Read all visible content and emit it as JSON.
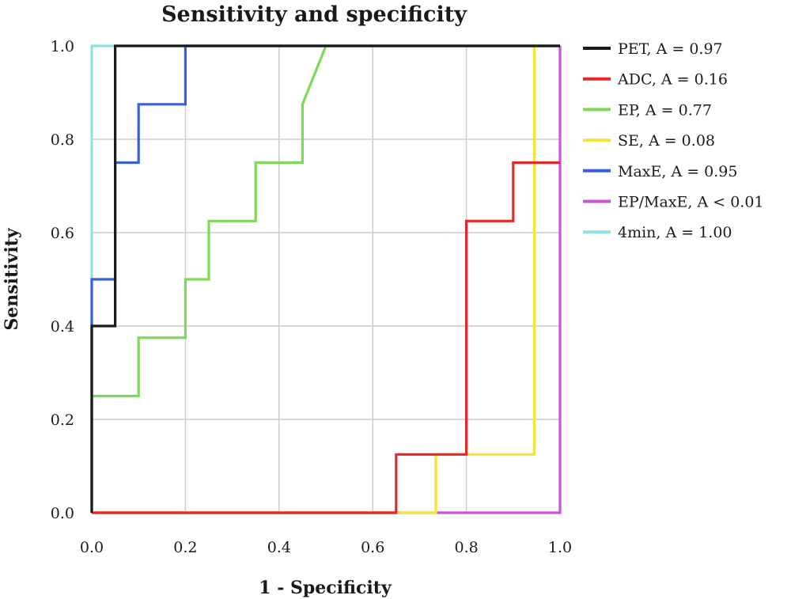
{
  "chart_data": {
    "type": "line",
    "title": "Sensitivity and specificity",
    "xlabel": "1 - Specificity",
    "ylabel": "Sensitivity",
    "xlim": [
      0,
      1
    ],
    "ylim": [
      0,
      1
    ],
    "x_ticks": [
      "0.0",
      "0.2",
      "0.4",
      "0.6",
      "0.8",
      "1.0"
    ],
    "y_ticks": [
      "0.0",
      "0.2",
      "0.4",
      "0.6",
      "0.8",
      "1.0"
    ],
    "grid": true,
    "legend_position": "right",
    "series": [
      {
        "name": "PET, A = 0.97",
        "color": "#1a1a1a",
        "points": [
          [
            0,
            0
          ],
          [
            0,
            0.4
          ],
          [
            0.05,
            0.4
          ],
          [
            0.05,
            1
          ],
          [
            1,
            1
          ]
        ]
      },
      {
        "name": "ADC, A = 0.16",
        "color": "#e8272a",
        "points": [
          [
            0,
            0
          ],
          [
            0.65,
            0
          ],
          [
            0.65,
            0.125
          ],
          [
            0.8,
            0.125
          ],
          [
            0.8,
            0.625
          ],
          [
            0.9,
            0.625
          ],
          [
            0.9,
            0.75
          ],
          [
            1,
            0.75
          ]
        ]
      },
      {
        "name": "EP, A = 0.77",
        "color": "#7ed957",
        "points": [
          [
            0,
            0
          ],
          [
            0,
            0.25
          ],
          [
            0.1,
            0.25
          ],
          [
            0.1,
            0.375
          ],
          [
            0.2,
            0.375
          ],
          [
            0.2,
            0.5
          ],
          [
            0.25,
            0.5
          ],
          [
            0.25,
            0.625
          ],
          [
            0.35,
            0.625
          ],
          [
            0.35,
            0.75
          ],
          [
            0.45,
            0.75
          ],
          [
            0.45,
            0.875
          ],
          [
            0.5,
            1
          ],
          [
            1,
            1
          ]
        ]
      },
      {
        "name": "SE, A = 0.08",
        "color": "#f5e33a",
        "points": [
          [
            0,
            0
          ],
          [
            0.735,
            0
          ],
          [
            0.735,
            0.125
          ],
          [
            0.945,
            0.125
          ],
          [
            0.945,
            1
          ],
          [
            1,
            1
          ]
        ]
      },
      {
        "name": "MaxE, A = 0.95",
        "color": "#3a5fd6",
        "points": [
          [
            0,
            0
          ],
          [
            0,
            0.5
          ],
          [
            0.05,
            0.5
          ],
          [
            0.05,
            0.75
          ],
          [
            0.1,
            0.75
          ],
          [
            0.1,
            0.875
          ],
          [
            0.2,
            0.875
          ],
          [
            0.2,
            1
          ],
          [
            1,
            1
          ]
        ]
      },
      {
        "name": "EP/MaxE, A < 0.01",
        "color": "#c955d6",
        "points": [
          [
            0,
            0
          ],
          [
            1,
            0
          ],
          [
            1,
            1
          ]
        ]
      },
      {
        "name": "4min, A = 1.00",
        "color": "#8de3e0",
        "points": [
          [
            0,
            0
          ],
          [
            0,
            1
          ],
          [
            1,
            1
          ]
        ]
      }
    ]
  }
}
